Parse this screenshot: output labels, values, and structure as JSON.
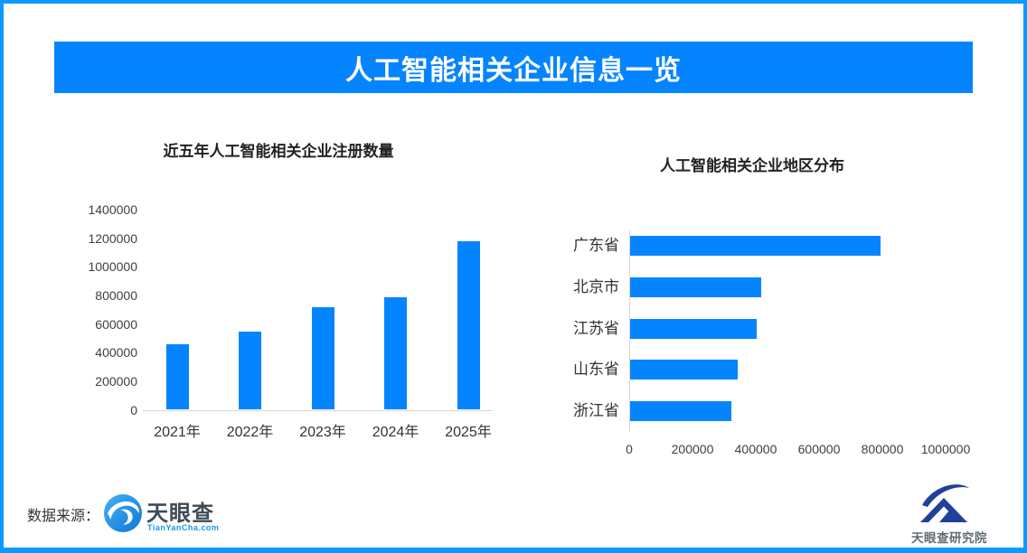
{
  "colors": {
    "accent_blue": "#0584ff",
    "frame_border_blue": "#0d9aff",
    "banner_bg": "#0584ff",
    "banner_text": "#ffffff",
    "axis_line_gray": "#d6d6d6",
    "tick_text_gray": "#404040"
  },
  "banner": {
    "title": "人工智能相关企业信息一览"
  },
  "chart_data": [
    {
      "type": "bar",
      "orientation": "vertical",
      "title": "近五年人工智能相关企业注册数量",
      "categories": [
        "2021年",
        "2022年",
        "2023年",
        "2024年",
        "2025年"
      ],
      "values": [
        460000,
        545000,
        720000,
        790000,
        1180000
      ],
      "ylabel": "",
      "xlabel": "",
      "ylim": [
        0,
        1400000
      ],
      "yticks": [
        0,
        200000,
        400000,
        600000,
        800000,
        1000000,
        1200000,
        1400000
      ],
      "grid": false,
      "legend": "none",
      "bar_color": "#0584ff"
    },
    {
      "type": "bar",
      "orientation": "horizontal",
      "title": "人工智能相关企业地区分布",
      "categories": [
        "广东省",
        "北京市",
        "江苏省",
        "山东省",
        "浙江省"
      ],
      "values": [
        790000,
        415000,
        400000,
        340000,
        320000
      ],
      "xlabel": "",
      "ylabel": "",
      "xlim": [
        0,
        1100000
      ],
      "xticks": [
        0,
        200000,
        400000,
        600000,
        800000,
        1000000
      ],
      "grid": false,
      "legend": "none",
      "bar_color": "#0584ff"
    }
  ],
  "footer": {
    "source_label": "数据来源：",
    "logo": {
      "name": "天眼查",
      "sub": "TianYanCha.com"
    },
    "right_logo": {
      "name": "天眼查研究院"
    }
  }
}
